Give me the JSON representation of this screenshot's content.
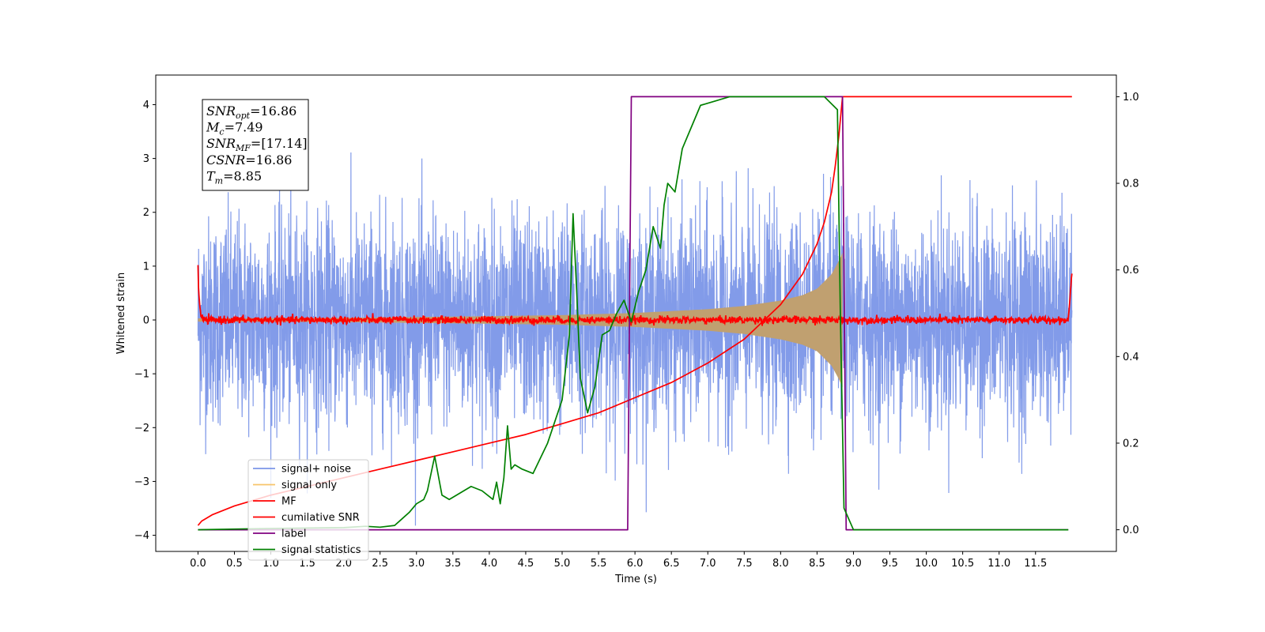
{
  "chart_data": {
    "type": "line",
    "title": "",
    "xlabel": "Time (s)",
    "ylabel": "Whitened strain",
    "xlim": [
      -0.58,
      12.61
    ],
    "ylim": [
      -4.3,
      4.55
    ],
    "ylim_right": [
      -0.05,
      1.05
    ],
    "grid": false,
    "legend_position": "lower-left",
    "x_ticks": [
      "0.0",
      "0.5",
      "1.0",
      "1.5",
      "2.0",
      "2.5",
      "3.0",
      "3.5",
      "4.0",
      "4.5",
      "5.0",
      "5.5",
      "6.0",
      "6.5",
      "7.0",
      "7.5",
      "8.0",
      "8.5",
      "9.0",
      "9.5",
      "10.0",
      "10.5",
      "11.0",
      "11.5"
    ],
    "y_ticks_left": [
      "4",
      "3",
      "2",
      "1",
      "0",
      "−1",
      "−2",
      "−3",
      "−4"
    ],
    "y_ticks_right": [
      "1.0",
      "0.8",
      "0.6",
      "0.4",
      "0.2",
      "0.0"
    ],
    "annotation": [
      {
        "base": "SNR",
        "sub": "opt",
        "value": "=16.86"
      },
      {
        "base": "M",
        "sub": "c",
        "value": "=7.49"
      },
      {
        "base": "SNR",
        "sub": "MF",
        "value": "=[17.14]"
      },
      {
        "base": "CSNR",
        "sub": "",
        "value": "=16.86"
      },
      {
        "base": "T",
        "sub": "m",
        "value": "=8.85"
      }
    ],
    "noise_band": {
      "x_start": 0.0,
      "x_end": 12.0,
      "typical_range": [
        -2.0,
        2.0
      ],
      "peak_range": [
        -3.9,
        3.7
      ]
    },
    "signal_envelope": {
      "x": [
        0.0,
        2.0,
        4.0,
        5.0,
        6.0,
        7.0,
        7.5,
        8.0,
        8.3,
        8.5,
        8.7,
        8.8,
        8.85
      ],
      "amplitude": [
        0.03,
        0.04,
        0.07,
        0.09,
        0.13,
        0.2,
        0.26,
        0.36,
        0.46,
        0.58,
        0.85,
        1.1,
        1.25
      ]
    },
    "series": [
      {
        "name": "signal+ noise",
        "color": "#7b96e8",
        "axis": "left",
        "description_values": "noise band"
      },
      {
        "name": "signal only",
        "color": "#f7c46a",
        "axis": "left",
        "x": [],
        "y": []
      },
      {
        "name": "MF",
        "color": "#ff0000",
        "axis": "left",
        "x": [
          0.0,
          0.02,
          0.1,
          12.0,
          12.02,
          12.04
        ],
        "y": [
          1.0,
          0.3,
          0.0,
          0.0,
          0.3,
          0.9
        ]
      },
      {
        "name": "cumilative SNR",
        "color": "#ff0000",
        "axis": "right",
        "x": [
          0.0,
          0.05,
          0.2,
          0.5,
          1.0,
          1.5,
          2.0,
          2.5,
          3.0,
          3.5,
          4.0,
          4.5,
          5.0,
          5.5,
          6.0,
          6.5,
          7.0,
          7.5,
          8.0,
          8.3,
          8.5,
          8.6,
          8.7,
          8.75,
          8.8,
          8.85,
          9.0,
          10.0,
          11.0,
          12.0
        ],
        "y": [
          0.01,
          0.02,
          0.035,
          0.055,
          0.08,
          0.1,
          0.12,
          0.14,
          0.16,
          0.18,
          0.2,
          0.22,
          0.245,
          0.27,
          0.305,
          0.34,
          0.385,
          0.44,
          0.52,
          0.59,
          0.66,
          0.71,
          0.78,
          0.84,
          0.91,
          1.0,
          1.0,
          1.0,
          1.0,
          1.0
        ]
      },
      {
        "name": "label",
        "color": "#800080",
        "axis": "right",
        "x": [
          0.0,
          5.9,
          5.95,
          8.85,
          8.9,
          11.95
        ],
        "y": [
          0.0,
          0.0,
          1.0,
          1.0,
          0.0,
          0.0
        ]
      },
      {
        "name": "signal statistics",
        "color": "#008000",
        "axis": "right",
        "x": [
          0.0,
          1.0,
          2.0,
          2.3,
          2.5,
          2.7,
          2.9,
          3.0,
          3.1,
          3.15,
          3.25,
          3.35,
          3.45,
          3.55,
          3.65,
          3.75,
          3.9,
          4.05,
          4.1,
          4.15,
          4.2,
          4.25,
          4.3,
          4.35,
          4.45,
          4.6,
          4.8,
          5.0,
          5.1,
          5.15,
          5.2,
          5.25,
          5.35,
          5.45,
          5.55,
          5.65,
          5.75,
          5.85,
          5.95,
          6.05,
          6.15,
          6.25,
          6.35,
          6.4,
          6.45,
          6.55,
          6.65,
          6.75,
          6.9,
          7.1,
          7.3,
          7.6,
          7.9,
          8.3,
          8.6,
          8.78,
          8.82,
          8.87,
          9.0,
          10.0,
          11.0,
          11.95
        ],
        "y": [
          0.0,
          0.003,
          0.005,
          0.008,
          0.006,
          0.01,
          0.04,
          0.06,
          0.07,
          0.09,
          0.17,
          0.08,
          0.07,
          0.08,
          0.09,
          0.1,
          0.09,
          0.07,
          0.11,
          0.06,
          0.12,
          0.24,
          0.14,
          0.15,
          0.14,
          0.13,
          0.2,
          0.3,
          0.45,
          0.73,
          0.55,
          0.35,
          0.27,
          0.33,
          0.45,
          0.46,
          0.5,
          0.53,
          0.48,
          0.55,
          0.6,
          0.7,
          0.65,
          0.75,
          0.8,
          0.78,
          0.88,
          0.92,
          0.98,
          0.99,
          1.0,
          1.0,
          1.0,
          1.0,
          1.0,
          0.97,
          0.5,
          0.05,
          0.0,
          0.0,
          0.0,
          0.0
        ]
      }
    ],
    "legend": [
      {
        "label": "signal+ noise",
        "color": "#7b96e8"
      },
      {
        "label": "signal only",
        "color": "#f7c46a"
      },
      {
        "label": "MF",
        "color": "#ff0000"
      },
      {
        "label": "cumilative SNR",
        "color": "#ff0000"
      },
      {
        "label": "label",
        "color": "#800080"
      },
      {
        "label": "signal statistics",
        "color": "#008000"
      }
    ]
  }
}
